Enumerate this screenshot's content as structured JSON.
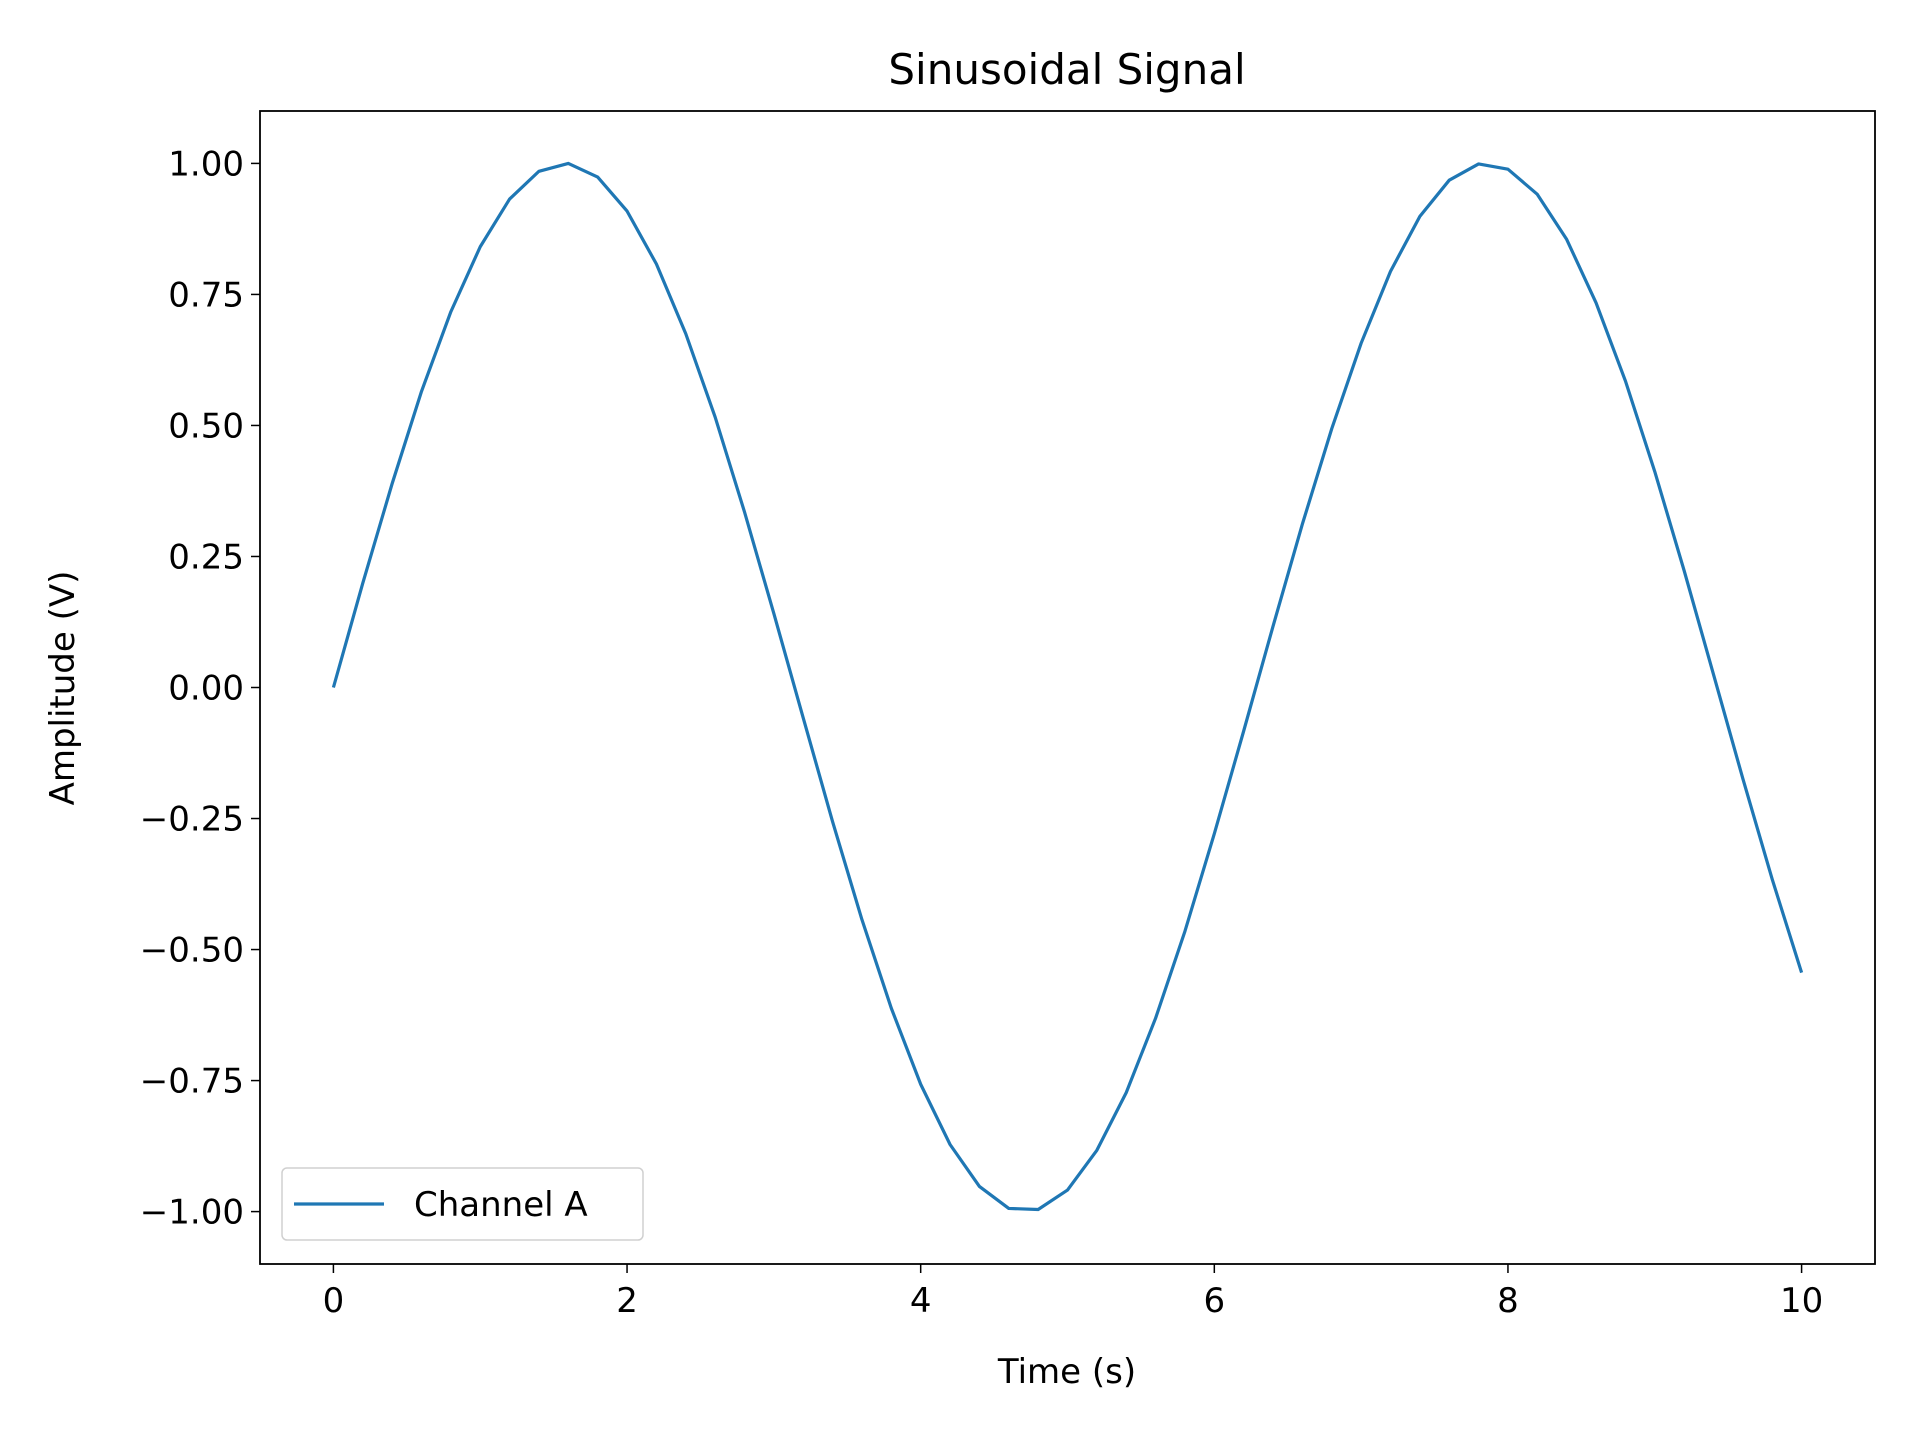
{
  "chart_data": {
    "type": "line",
    "title": "Sinusoidal Signal",
    "xlabel": "Time (s)",
    "ylabel": "Amplitude (V)",
    "x": [
      0,
      0.2,
      0.4,
      0.6,
      0.8,
      1.0,
      1.2,
      1.4,
      1.6,
      1.8,
      2.0,
      2.2,
      2.4,
      2.6,
      2.8,
      3.0,
      3.2,
      3.4,
      3.6,
      3.8,
      4.0,
      4.2,
      4.4,
      4.6,
      4.8,
      5.0,
      5.2,
      5.4,
      5.6,
      5.8,
      6.0,
      6.2,
      6.4,
      6.6,
      6.8,
      7.0,
      7.2,
      7.4,
      7.6,
      7.8,
      8.0,
      8.2,
      8.4,
      8.6,
      8.8,
      9.0,
      9.2,
      9.4,
      9.6,
      9.8,
      10.0
    ],
    "series": [
      {
        "name": "Channel A",
        "color": "#1f77b4",
        "values": [
          0,
          0.199,
          0.389,
          0.565,
          0.717,
          0.841,
          0.932,
          0.985,
          1.0,
          0.974,
          0.909,
          0.808,
          0.675,
          0.516,
          0.335,
          0.141,
          -0.058,
          -0.256,
          -0.443,
          -0.612,
          -0.757,
          -0.872,
          -0.952,
          -0.994,
          -0.996,
          -0.959,
          -0.883,
          -0.773,
          -0.631,
          -0.465,
          -0.279,
          -0.083,
          0.117,
          0.312,
          0.494,
          0.657,
          0.794,
          0.899,
          0.968,
          0.999,
          0.989,
          0.941,
          0.855,
          0.734,
          0.585,
          0.412,
          0.223,
          0.025,
          -0.174,
          -0.366,
          -0.544
        ]
      }
    ],
    "xlim": [
      -0.5,
      10.5
    ],
    "ylim": [
      -1.1,
      1.1
    ],
    "xticks": [
      0,
      2,
      4,
      6,
      8,
      10
    ],
    "yticks": [
      {
        "value": -1,
        "label": "−1.00"
      },
      {
        "value": -0.75,
        "label": "−0.75"
      },
      {
        "value": -0.5,
        "label": "−0.50"
      },
      {
        "value": -0.25,
        "label": "−0.25"
      },
      {
        "value": 0,
        "label": "0.00"
      },
      {
        "value": 0.25,
        "label": "0.25"
      },
      {
        "value": 0.5,
        "label": "0.50"
      },
      {
        "value": 0.75,
        "label": "0.75"
      },
      {
        "value": 1,
        "label": "1.00"
      }
    ],
    "grid": false,
    "legend": "lower left"
  }
}
